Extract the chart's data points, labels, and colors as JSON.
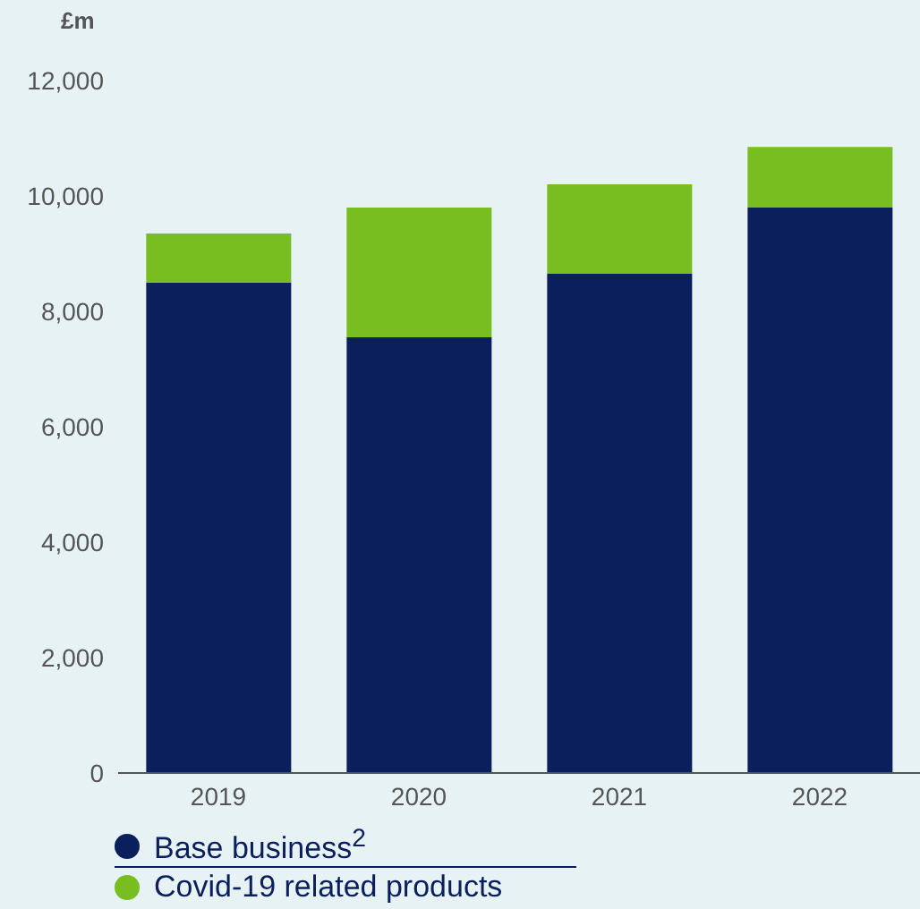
{
  "chart_data": {
    "type": "bar",
    "ylabel": "£m",
    "categories": [
      "2019",
      "2020",
      "2021",
      "2022"
    ],
    "stacked": true,
    "series": [
      {
        "name": "Base business$^{2}$",
        "color": "#0a1f5c",
        "values": [
          8500,
          7550,
          8650,
          9800
        ]
      },
      {
        "name": "Covid-19 related products",
        "color": "#78be20",
        "values": [
          850,
          2250,
          1550,
          1050
        ]
      }
    ],
    "ylim": [
      0,
      12000
    ],
    "yticks": [
      0,
      {
        "value": 2000,
        "label": "2,000"
      },
      {
        "value": 4000,
        "label": "4,000"
      },
      {
        "value": 6000,
        "label": "6,000"
      },
      {
        "value": 8000,
        "label": "8,000"
      },
      {
        "value": 10000,
        "label": "10,000"
      },
      {
        "value": 12000,
        "label": "12,000"
      }
    ],
    "legend": "bottom"
  }
}
